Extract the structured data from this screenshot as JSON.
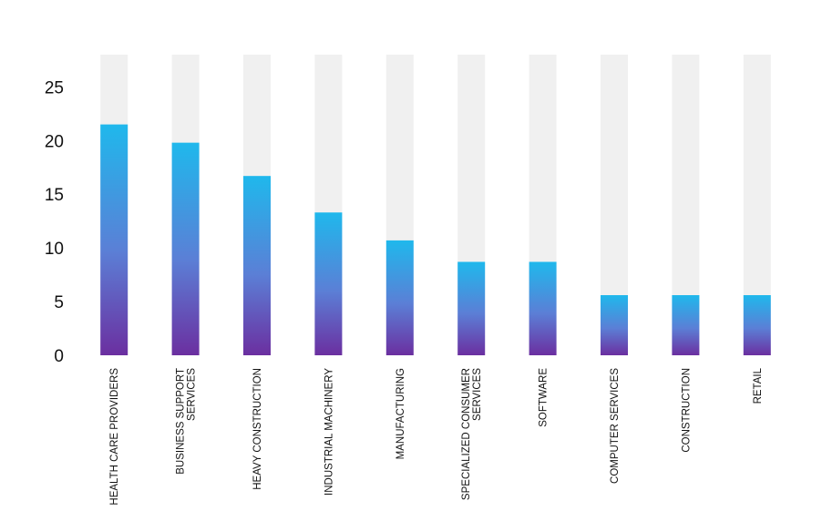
{
  "chart_data": {
    "type": "bar",
    "categories": [
      [
        "HEALTH CARE PROVIDERS"
      ],
      [
        "BUSINESS SUPPORT",
        "SERVICES"
      ],
      [
        "HEAVY CONSTRUCTION"
      ],
      [
        "INDUSTRIAL MACHINERY"
      ],
      [
        "MANUFACTURING"
      ],
      [
        "SPECIALIZED CONSUMER",
        "SERVICES"
      ],
      [
        "SOFTWARE"
      ],
      [
        "COMPUTER SERVICES"
      ],
      [
        "CONSTRUCTION"
      ],
      [
        "RETAIL"
      ]
    ],
    "values": [
      21.5,
      19.8,
      16.7,
      13.3,
      10.7,
      8.7,
      8.7,
      5.6,
      5.6,
      5.6
    ],
    "ylim": [
      0,
      28
    ],
    "yticks": [
      0,
      5,
      10,
      15,
      20,
      25
    ],
    "grid": false,
    "legend": "none",
    "colors": {
      "bar_top": "#1fb8ec",
      "bar_mid": "#5b7fd6",
      "bar_bottom": "#6b2fa0",
      "track": "#f0f0f0"
    }
  }
}
